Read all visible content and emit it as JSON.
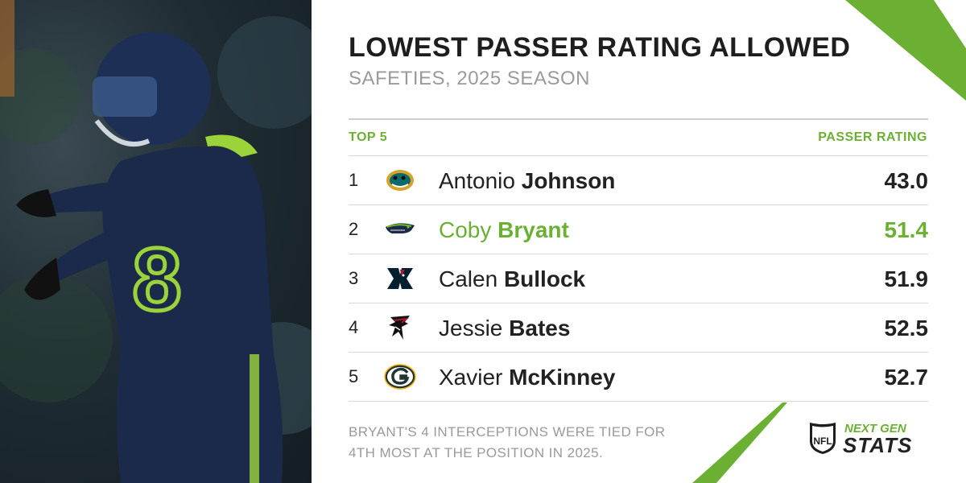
{
  "title": "LOWEST PASSER RATING ALLOWED",
  "subtitle": "SAFETIES, 2025 SEASON",
  "table": {
    "left_header": "TOP 5",
    "right_header": "PASSER RATING",
    "rows": [
      {
        "rank": "1",
        "first": "Antonio",
        "last": "Johnson",
        "value": "43.0",
        "team_icon": "jaguars-logo-icon"
      },
      {
        "rank": "2",
        "first": "Coby",
        "last": "Bryant",
        "value": "51.4",
        "team_icon": "seahawks-logo-icon",
        "highlight": true
      },
      {
        "rank": "3",
        "first": "Calen",
        "last": "Bullock",
        "value": "51.9",
        "team_icon": "texans-logo-icon"
      },
      {
        "rank": "4",
        "first": "Jessie",
        "last": "Bates",
        "value": "52.5",
        "team_icon": "falcons-logo-icon"
      },
      {
        "rank": "5",
        "first": "Xavier",
        "last": "McKinney",
        "value": "52.7",
        "team_icon": "packers-logo-icon"
      }
    ]
  },
  "footnote": "BRYANT'S 4 INTERCEPTIONS WERE TIED FOR 4TH MOST AT THE POSITION IN 2025.",
  "brand": {
    "line1": "NEXT GEN",
    "line2": "STATS",
    "shield": "NFL"
  },
  "colors": {
    "accent": "#6bb033",
    "text": "#1e1e1e",
    "muted": "#9a9a9a",
    "rule": "#d9d9d9"
  },
  "photo": {
    "jersey_number": "8"
  }
}
